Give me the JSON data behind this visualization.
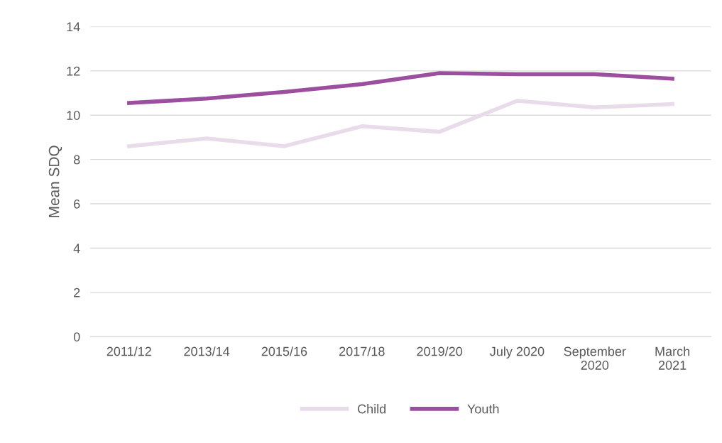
{
  "chart_data": {
    "type": "line",
    "ylabel": "Mean SDQ",
    "categories": [
      "2011/12",
      "2013/14",
      "2015/16",
      "2017/18",
      "2019/20",
      "July 2020",
      "September\n2020",
      "March\n2021"
    ],
    "series": [
      {
        "name": "Child",
        "color": "#e8dcea",
        "values": [
          8.6,
          8.95,
          8.6,
          9.5,
          9.25,
          10.65,
          10.35,
          10.5
        ]
      },
      {
        "name": "Youth",
        "color": "#9b4f9e",
        "values": [
          10.55,
          10.75,
          11.05,
          11.4,
          11.9,
          11.85,
          11.85,
          11.65
        ]
      }
    ],
    "ylim": [
      0,
      14
    ],
    "yticks": [
      0,
      2,
      4,
      6,
      8,
      10,
      12,
      14
    ],
    "grid": "y",
    "legend": "bottom",
    "marker": "none",
    "line_style": "solid"
  }
}
